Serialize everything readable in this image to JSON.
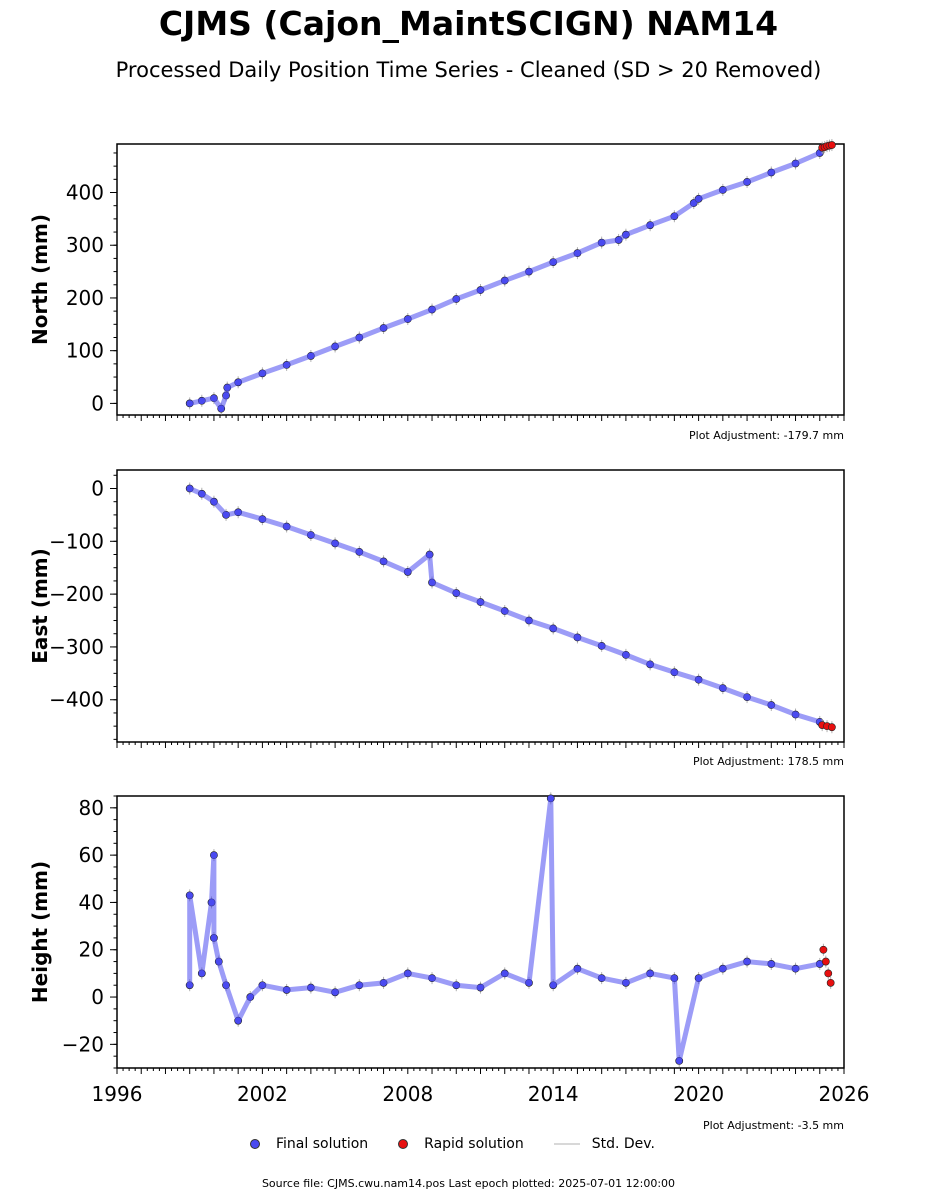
{
  "header": {
    "title": "CJMS (Cajon_MaintSCIGN) NAM14",
    "subtitle": "Processed Daily Position Time Series - Cleaned (SD > 20 Removed)"
  },
  "panels": [
    {
      "adjustment": "Plot Adjustment: -179.7 mm"
    },
    {
      "adjustment": "Plot Adjustment: 178.5 mm"
    },
    {
      "adjustment": "Plot Adjustment: -3.5 mm"
    }
  ],
  "legend": {
    "final": "Final solution",
    "rapid": "Rapid solution",
    "std": "Std. Dev."
  },
  "footer": "Source file: CJMS.cwu.nam14.pos  Last epoch plotted: 2025-07-01 12:00:00",
  "colors": {
    "final": "#4a4af0",
    "rapid": "#e81010",
    "std": "#b0b0b0"
  },
  "chart_data": [
    {
      "type": "scatter",
      "ylabel": "North (mm)",
      "xlim": [
        1996,
        2026
      ],
      "ylim": [
        -22,
        492
      ],
      "yticks": [
        0,
        100,
        200,
        300,
        400
      ],
      "xticks": [],
      "series": [
        {
          "name": "Final solution",
          "x": [
            1999.0,
            1999.5,
            2000.0,
            2000.3,
            2000.5,
            2000.55,
            2001.0,
            2002.0,
            2003.0,
            2004.0,
            2005.0,
            2006.0,
            2007.0,
            2008.0,
            2009.0,
            2010.0,
            2011.0,
            2012.0,
            2013.0,
            2014.0,
            2015.0,
            2016.0,
            2016.7,
            2017.0,
            2018.0,
            2019.0,
            2019.8,
            2020.0,
            2021.0,
            2022.0,
            2023.0,
            2024.0,
            2025.0
          ],
          "y": [
            0,
            5,
            10,
            -10,
            15,
            30,
            40,
            57,
            73,
            90,
            108,
            125,
            143,
            160,
            178,
            198,
            215,
            233,
            250,
            268,
            285,
            305,
            310,
            320,
            338,
            355,
            380,
            388,
            405,
            420,
            438,
            455,
            475
          ]
        },
        {
          "name": "Rapid solution",
          "x": [
            2025.1,
            2025.2,
            2025.3,
            2025.4,
            2025.5
          ],
          "y": [
            485,
            486,
            488,
            489,
            490
          ]
        }
      ]
    },
    {
      "type": "scatter",
      "ylabel": "East (mm)",
      "xlim": [
        1996,
        2026
      ],
      "ylim": [
        -480,
        35
      ],
      "yticks": [
        0,
        -100,
        -200,
        -300,
        -400
      ],
      "xticks": [],
      "series": [
        {
          "name": "Final solution",
          "x": [
            1999.0,
            1999.5,
            2000.0,
            2000.5,
            2001.0,
            2002.0,
            2003.0,
            2004.0,
            2005.0,
            2006.0,
            2007.0,
            2008.0,
            2008.9,
            2009.0,
            2010.0,
            2011.0,
            2012.0,
            2013.0,
            2014.0,
            2015.0,
            2016.0,
            2017.0,
            2018.0,
            2019.0,
            2020.0,
            2021.0,
            2022.0,
            2023.0,
            2024.0,
            2025.0
          ],
          "y": [
            0,
            -10,
            -25,
            -50,
            -45,
            -58,
            -72,
            -88,
            -104,
            -120,
            -138,
            -158,
            -125,
            -178,
            -198,
            -215,
            -232,
            -250,
            -265,
            -282,
            -298,
            -315,
            -333,
            -348,
            -362,
            -378,
            -395,
            -410,
            -428,
            -442
          ]
        },
        {
          "name": "Rapid solution",
          "x": [
            2025.1,
            2025.3,
            2025.5
          ],
          "y": [
            -448,
            -450,
            -452
          ]
        }
      ]
    },
    {
      "type": "scatter",
      "ylabel": "Height (mm)",
      "xlim": [
        1996,
        2026
      ],
      "ylim": [
        -30,
        85
      ],
      "yticks": [
        -20,
        0,
        20,
        40,
        60,
        80
      ],
      "xticks": [
        1996,
        2002,
        2008,
        2014,
        2020,
        2026
      ],
      "series": [
        {
          "name": "Final solution",
          "x": [
            1999.0,
            1999.0,
            1999.5,
            1999.9,
            2000.0,
            2000.0,
            2000.2,
            2000.5,
            2001.0,
            2001.5,
            2002.0,
            2003.0,
            2004.0,
            2005.0,
            2006.0,
            2007.0,
            2008.0,
            2009.0,
            2010.0,
            2011.0,
            2012.0,
            2013.0,
            2013.9,
            2014.0,
            2015.0,
            2016.0,
            2017.0,
            2018.0,
            2019.0,
            2019.2,
            2020.0,
            2021.0,
            2022.0,
            2023.0,
            2024.0,
            2025.0
          ],
          "y": [
            5,
            43,
            10,
            40,
            60,
            25,
            15,
            5,
            -10,
            0,
            5,
            3,
            4,
            2,
            5,
            6,
            10,
            8,
            5,
            4,
            10,
            6,
            84,
            5,
            12,
            8,
            6,
            10,
            8,
            -27,
            8,
            12,
            15,
            14,
            12,
            14
          ]
        },
        {
          "name": "Rapid solution",
          "x": [
            2025.15,
            2025.25,
            2025.35,
            2025.45
          ],
          "y": [
            20,
            15,
            10,
            6
          ]
        }
      ]
    }
  ]
}
